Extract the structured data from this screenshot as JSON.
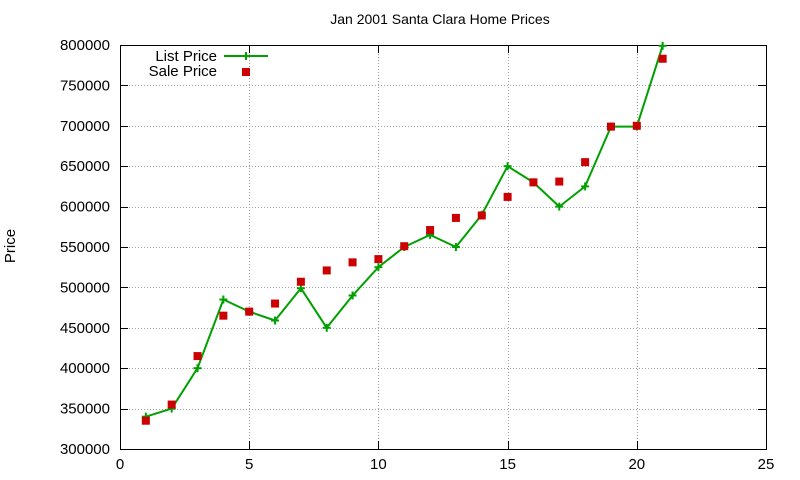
{
  "chart_data": {
    "type": "line",
    "title": "Jan 2001 Santa Clara Home Prices",
    "xlabel": "",
    "ylabel": "Price",
    "xlim": [
      0,
      25
    ],
    "ylim": [
      300000,
      800000
    ],
    "x_ticks": [
      0,
      5,
      10,
      15,
      20,
      25
    ],
    "y_ticks": [
      300000,
      350000,
      400000,
      450000,
      500000,
      550000,
      600000,
      650000,
      700000,
      750000,
      800000
    ],
    "grid": true,
    "legend_position": "top-left",
    "colors": {
      "list_price": "#00a000",
      "sale_price": "#cc0000",
      "grid": "#a0a0a0",
      "axis": "#000000"
    },
    "series": [
      {
        "name": "List Price",
        "style": "line-with-plus-markers",
        "x": [
          1,
          2,
          3,
          4,
          5,
          6,
          7,
          8,
          9,
          10,
          11,
          12,
          13,
          14,
          15,
          16,
          17,
          18,
          19,
          20,
          21
        ],
        "values": [
          340000,
          350000,
          400000,
          485000,
          470000,
          459000,
          499000,
          450000,
          490000,
          525000,
          550000,
          565000,
          550000,
          590000,
          650000,
          630000,
          600000,
          625000,
          699000,
          699000,
          799000
        ]
      },
      {
        "name": "Sale Price",
        "style": "square-markers",
        "x": [
          1,
          2,
          3,
          4,
          5,
          6,
          7,
          8,
          9,
          10,
          11,
          12,
          13,
          14,
          15,
          16,
          17,
          18,
          19,
          20,
          21
        ],
        "values": [
          335000,
          355000,
          415000,
          465000,
          470000,
          480000,
          507000,
          521000,
          531000,
          535000,
          551000,
          571000,
          586000,
          589000,
          612000,
          630000,
          631000,
          655000,
          699000,
          700000,
          783000
        ]
      }
    ]
  }
}
